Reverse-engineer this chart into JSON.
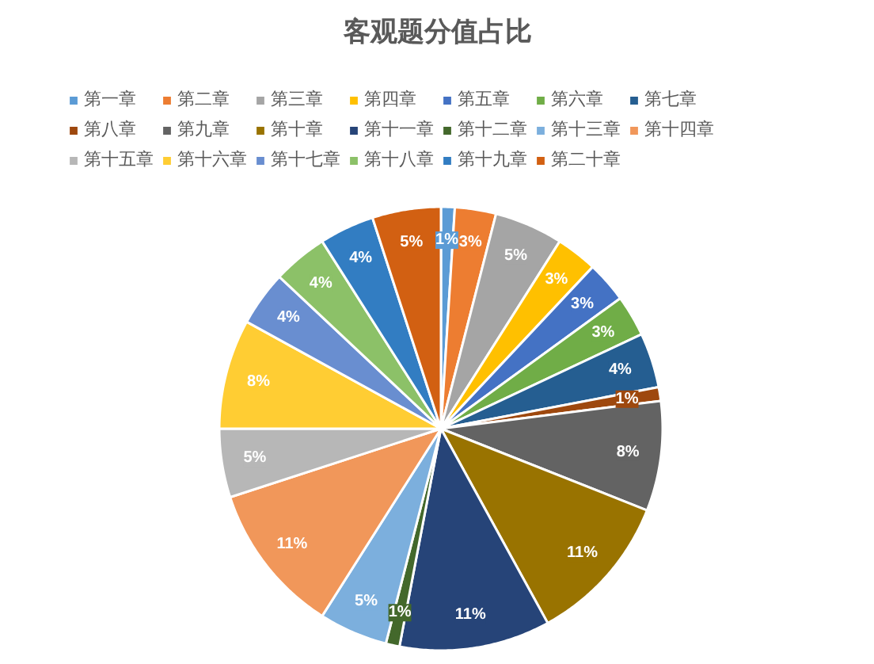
{
  "chart_data": {
    "type": "pie",
    "title": "客观题分值占比",
    "categories": [
      "第一章",
      "第二章",
      "第三章",
      "第四章",
      "第五章",
      "第六章",
      "第七章",
      "第八章",
      "第九章",
      "第十章",
      "第十一章",
      "第十二章",
      "第十三章",
      "第十四章",
      "第十五章",
      "第十六章",
      "第十七章",
      "第十八章",
      "第十九章",
      "第二十章"
    ],
    "values": [
      1,
      3,
      5,
      3,
      3,
      3,
      4,
      1,
      8,
      11,
      11,
      1,
      5,
      11,
      5,
      8,
      4,
      4,
      4,
      5
    ],
    "value_labels": [
      "1%",
      "3%",
      "5%",
      "3%",
      "3%",
      "3%",
      "4%",
      "1%",
      "8%",
      "11%",
      "11%",
      "1%",
      "5%",
      "11%",
      "5%",
      "8%",
      "4%",
      "4%",
      "4%",
      "5%"
    ],
    "colors": [
      "#5b9bd5",
      "#ed7d31",
      "#a5a5a5",
      "#ffc000",
      "#4472c4",
      "#70ad47",
      "#255e91",
      "#9e480e",
      "#636363",
      "#997300",
      "#264478",
      "#43682b",
      "#7cafdd",
      "#f1975a",
      "#b7b7b7",
      "#ffcd33",
      "#698ed0",
      "#8cc168",
      "#327dc2",
      "#d26012"
    ],
    "legend": "top"
  }
}
